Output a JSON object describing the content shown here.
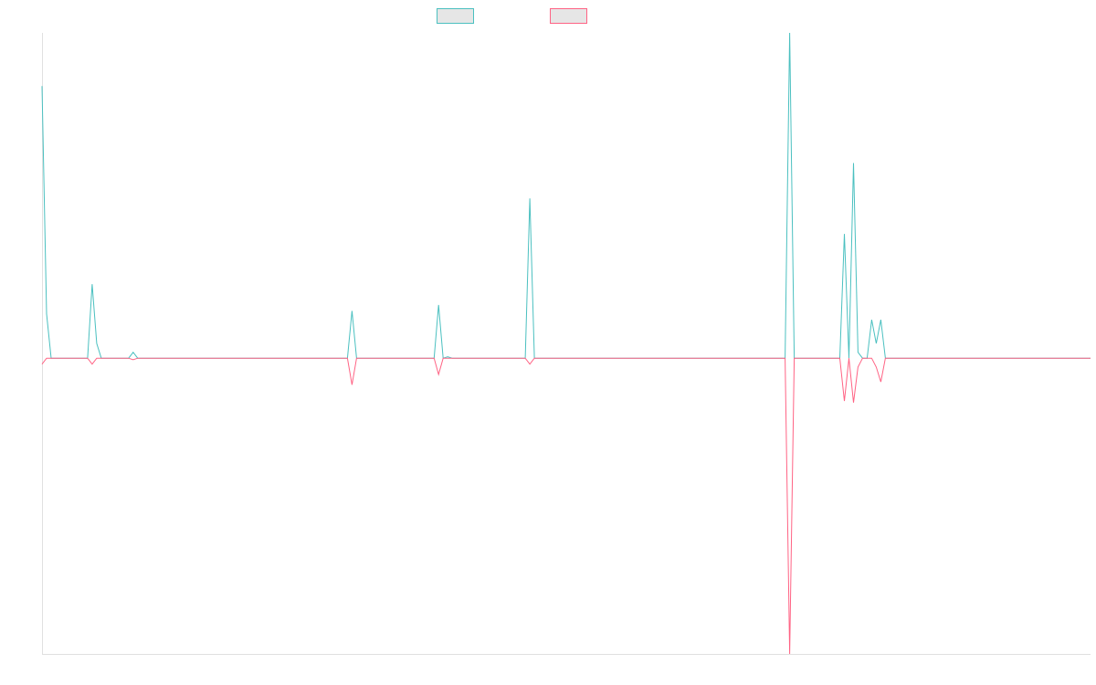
{
  "chart_data": {
    "type": "line",
    "title": "",
    "xlabel": "",
    "ylabel": "",
    "legend_placement": "top-center",
    "grid": false,
    "ylim": [
      -1.0,
      1.1
    ],
    "xlim": [
      0,
      230
    ],
    "series": [
      {
        "color": "#4bc0c0",
        "fill": "#e6e6e6",
        "points": [
          [
            0,
            0.92
          ],
          [
            1,
            0.15
          ],
          [
            2,
            0
          ],
          [
            10,
            0
          ],
          [
            11,
            0.25
          ],
          [
            12,
            0.05
          ],
          [
            13,
            0
          ],
          [
            19,
            0
          ],
          [
            20,
            0.02
          ],
          [
            21,
            0
          ],
          [
            67,
            0
          ],
          [
            68,
            0.16
          ],
          [
            69,
            0
          ],
          [
            86,
            0
          ],
          [
            87,
            0.18
          ],
          [
            88,
            0
          ],
          [
            89,
            0.005
          ],
          [
            90,
            0
          ],
          [
            106,
            0
          ],
          [
            107,
            0.54
          ],
          [
            108,
            0
          ],
          [
            163,
            0
          ],
          [
            164,
            1.1
          ],
          [
            165,
            0
          ],
          [
            175,
            0
          ],
          [
            176,
            0.42
          ],
          [
            177,
            0
          ],
          [
            178,
            0.66
          ],
          [
            179,
            0.02
          ],
          [
            180,
            0
          ],
          [
            181,
            0
          ],
          [
            182,
            0.13
          ],
          [
            183,
            0.05
          ],
          [
            184,
            0.13
          ],
          [
            185,
            0
          ],
          [
            230,
            0
          ]
        ]
      },
      {
        "color": "#ff6384",
        "fill": "#e6e6e6",
        "points": [
          [
            0,
            -0.02
          ],
          [
            1,
            0
          ],
          [
            10,
            0
          ],
          [
            11,
            -0.02
          ],
          [
            12,
            0
          ],
          [
            19,
            0
          ],
          [
            20,
            -0.005
          ],
          [
            21,
            0
          ],
          [
            67,
            0
          ],
          [
            68,
            -0.09
          ],
          [
            69,
            0
          ],
          [
            86,
            0
          ],
          [
            87,
            -0.055
          ],
          [
            88,
            0
          ],
          [
            106,
            0
          ],
          [
            107,
            -0.02
          ],
          [
            108,
            0
          ],
          [
            163,
            0
          ],
          [
            164,
            -1.0
          ],
          [
            165,
            0
          ],
          [
            175,
            0
          ],
          [
            176,
            -0.145
          ],
          [
            177,
            0
          ],
          [
            178,
            -0.15
          ],
          [
            179,
            -0.03
          ],
          [
            180,
            0
          ],
          [
            181,
            0
          ],
          [
            182,
            0
          ],
          [
            183,
            -0.03
          ],
          [
            184,
            -0.08
          ],
          [
            185,
            0
          ],
          [
            230,
            0
          ]
        ]
      }
    ]
  }
}
